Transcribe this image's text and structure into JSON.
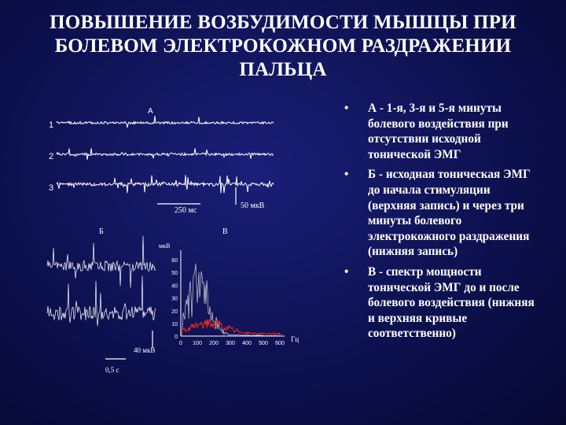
{
  "title": {
    "line1": "ПОВЫШЕНИЕ ВОЗБУДИМОСТИ МЫШЦЫ ПРИ",
    "line2": "БОЛЕВОМ ЭЛЕКТРОКОЖНОМ РАЗДРАЖЕНИИ",
    "line3": "ПАЛЬЦА"
  },
  "figure": {
    "panel_a_label": "А",
    "panel_b_label": "Б",
    "panel_c_label": "В",
    "trace_labels": [
      "1",
      "2",
      "3"
    ],
    "time_scale_a": "250 мс",
    "amp_scale_a": "50 мкВ",
    "amp_scale_b": "40 мкВ",
    "time_scale_b": "0,5 с",
    "spectrum_ylabel": "мкВ",
    "spectrum_xlabel": "Гц",
    "spectrum_yticks": [
      "60",
      "50",
      "40",
      "30",
      "20",
      "10",
      "0"
    ],
    "spectrum_xticks": [
      "0",
      "100",
      "200",
      "300",
      "400",
      "500",
      "600"
    ],
    "colors": {
      "trace": "#ffffff",
      "spectrum_after": "#ff2a1a",
      "spectrum_before": "#cfcfcf"
    }
  },
  "bullets": [
    {
      "marker": "•",
      "text": "А - 1-я, 3-я и 5-я минуты болевого воздействия при отсутствии исходной тонической ЭМГ"
    },
    {
      "marker": "•",
      "text": "Б - исходная тоническая ЭМГ до начала стимуляции (верхняя запись) и через три минуты болевого электрокожного раздражения (нижняя запись)"
    },
    {
      "marker": "•",
      "text": "В - спектр мощности тонической ЭМГ до и после болевого воздействия (нижняя и верхняя кривые соответственно)"
    }
  ]
}
